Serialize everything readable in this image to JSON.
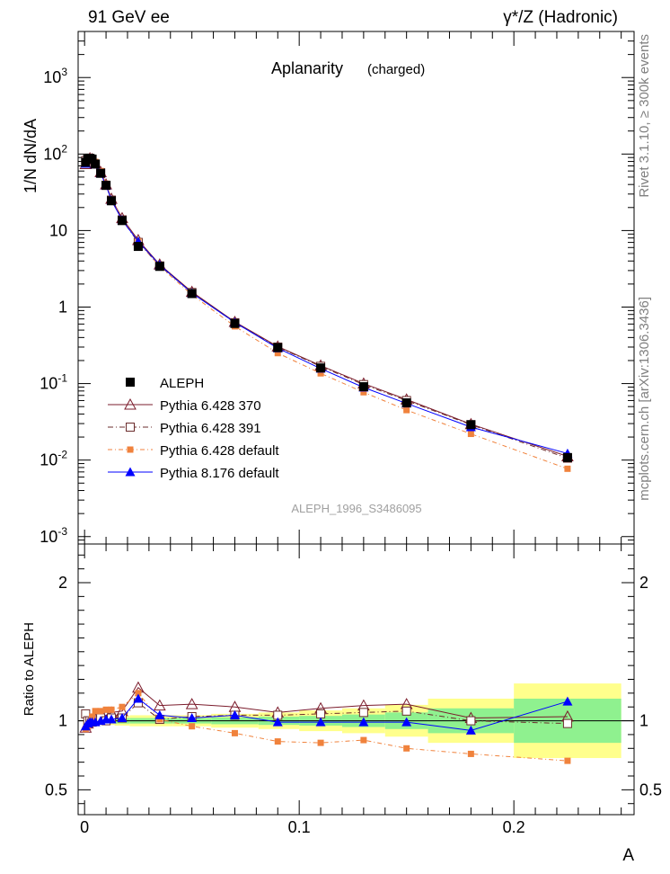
{
  "header": {
    "left": "91 GeV ee",
    "right": "γ*/Z (Hadronic)"
  },
  "title": {
    "main": "Aplanarity",
    "sub": "(charged)"
  },
  "side_texts": {
    "rivet": "Rivet 3.1.10, ≥ 300k events",
    "mcplots": "mcplots.cern.ch [arXiv:1306.3436]"
  },
  "analysis_id": "ALEPH_1996_S3486095",
  "chart_data": [
    {
      "type": "scatter",
      "panel": "main",
      "ylabel": "1/N dN/dA",
      "xlabel": "A",
      "xlim": [
        -0.003,
        0.256
      ],
      "ylim": [
        0.0008,
        4000
      ],
      "yscale": "log",
      "y_tick_labels": [
        "10^-3",
        "10^-2",
        "10^-1",
        "1",
        "10",
        "10^2",
        "10^3"
      ],
      "x_tick_labels": [
        "0",
        "0.1",
        "0.2"
      ],
      "legend_placement": "lower-left",
      "x": [
        0.0005,
        0.0015,
        0.0025,
        0.0035,
        0.005,
        0.0075,
        0.01,
        0.0125,
        0.0175,
        0.025,
        0.035,
        0.05,
        0.07,
        0.09,
        0.11,
        0.13,
        0.15,
        0.18,
        0.225
      ],
      "series": [
        {
          "name": "ALEPH",
          "color": "#000000",
          "marker": "filled-square",
          "values": [
            78,
            86,
            88,
            86,
            74,
            56,
            39,
            24.5,
            13.5,
            6.2,
            3.4,
            1.5,
            0.61,
            0.295,
            0.16,
            0.091,
            0.056,
            0.029,
            0.0108
          ]
        },
        {
          "name": "Pythia 6.428 370",
          "color": "#7b1c2c",
          "marker": "open-triangle",
          "values": [
            74,
            84,
            88,
            86,
            75,
            58,
            40,
            26,
            14.5,
            7.5,
            3.6,
            1.58,
            0.64,
            0.305,
            0.172,
            0.1,
            0.062,
            0.0295,
            0.0112
          ]
        },
        {
          "name": "Pythia 6.428 391",
          "color": "#6b2c2c",
          "marker": "open-square",
          "values": [
            82,
            86,
            88,
            85,
            74,
            57,
            39,
            25,
            13.8,
            7.0,
            3.45,
            1.55,
            0.625,
            0.3,
            0.168,
            0.097,
            0.06,
            0.029,
            0.0106
          ]
        },
        {
          "name": "Pythia 6.428 default",
          "color": "#f0823c",
          "marker": "filled-square-small",
          "values": [
            73,
            80,
            87,
            89,
            79,
            60,
            41,
            25.5,
            14,
            7.2,
            3.4,
            1.45,
            0.56,
            0.25,
            0.136,
            0.077,
            0.045,
            0.022,
            0.0077
          ]
        },
        {
          "name": "Pythia 8.176 default",
          "color": "#0000ff",
          "marker": "filled-triangle",
          "values": [
            75,
            84,
            87,
            85,
            73,
            56,
            39,
            24.8,
            13.7,
            7.2,
            3.55,
            1.52,
            0.63,
            0.29,
            0.157,
            0.089,
            0.055,
            0.027,
            0.0122
          ]
        }
      ]
    },
    {
      "type": "line",
      "panel": "ratio",
      "ylabel": "Ratio to ALEPH",
      "xlabel": "A",
      "xlim": [
        -0.003,
        0.256
      ],
      "ylim": [
        0.32,
        2.28
      ],
      "y_tick_labels": [
        "0.5",
        "1",
        "2"
      ],
      "x_tick_labels": [
        "0",
        "0.1",
        "0.2"
      ],
      "reference_line": 1,
      "bands": {
        "x_edges": [
          0.0,
          0.001,
          0.002,
          0.003,
          0.004,
          0.006,
          0.009,
          0.011,
          0.014,
          0.021,
          0.029,
          0.041,
          0.059,
          0.081,
          0.1,
          0.12,
          0.14,
          0.16,
          0.2,
          0.25
        ],
        "inner": [
          0.015,
          0.015,
          0.015,
          0.015,
          0.015,
          0.015,
          0.015,
          0.015,
          0.02,
          0.02,
          0.02,
          0.02,
          0.025,
          0.03,
          0.035,
          0.045,
          0.06,
          0.09,
          0.16
        ],
        "outer": [
          0.03,
          0.03,
          0.03,
          0.03,
          0.03,
          0.03,
          0.03,
          0.03,
          0.035,
          0.04,
          0.04,
          0.04,
          0.05,
          0.06,
          0.075,
          0.09,
          0.115,
          0.16,
          0.27
        ],
        "inner_color": "#8ff18f",
        "outer_color": "#ffff8c"
      },
      "x": [
        0.0005,
        0.0015,
        0.0025,
        0.0035,
        0.005,
        0.0075,
        0.01,
        0.0125,
        0.0175,
        0.025,
        0.035,
        0.05,
        0.07,
        0.09,
        0.11,
        0.13,
        0.15,
        0.18,
        0.225
      ],
      "series": [
        {
          "name": "Pythia 6.428 370",
          "color": "#7b1c2c",
          "marker": "open-triangle",
          "values": [
            0.95,
            0.98,
            1.0,
            1.0,
            1.01,
            1.03,
            1.04,
            1.06,
            1.07,
            1.24,
            1.11,
            1.12,
            1.1,
            1.06,
            1.09,
            1.11,
            1.12,
            1.02,
            1.03
          ]
        },
        {
          "name": "Pythia 6.428 391",
          "color": "#6b2c2c",
          "marker": "open-square",
          "values": [
            1.05,
            1.0,
            1.0,
            0.99,
            1.0,
            1.02,
            1.0,
            1.02,
            1.02,
            1.13,
            1.01,
            1.03,
            1.04,
            1.04,
            1.05,
            1.06,
            1.07,
            1.0,
            0.98
          ]
        },
        {
          "name": "Pythia 6.428 default",
          "color": "#f0823c",
          "marker": "filled-square-small",
          "values": [
            0.94,
            0.95,
            0.99,
            1.03,
            1.07,
            1.07,
            1.08,
            1.08,
            1.1,
            1.2,
            1.01,
            0.96,
            0.91,
            0.85,
            0.84,
            0.86,
            0.8,
            0.76,
            0.71
          ]
        },
        {
          "name": "Pythia 8.176 default",
          "color": "#0000ff",
          "marker": "filled-triangle",
          "values": [
            0.96,
            0.98,
            0.99,
            0.99,
            0.99,
            1.0,
            1.01,
            1.01,
            1.02,
            1.16,
            1.04,
            1.02,
            1.04,
            0.99,
            0.99,
            0.99,
            0.99,
            0.93,
            1.14
          ]
        }
      ]
    }
  ]
}
